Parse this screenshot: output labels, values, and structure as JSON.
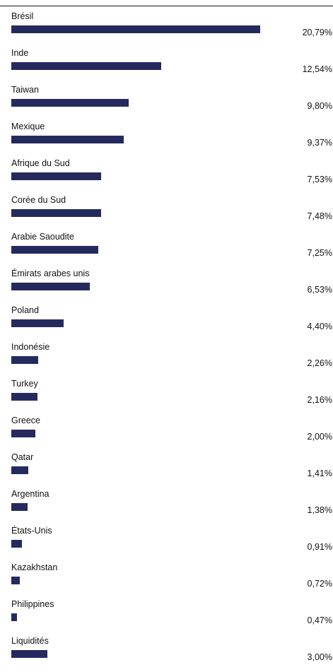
{
  "colors": {
    "bar": "#252a5e",
    "text": "#111111",
    "rule": "#111111"
  },
  "chart_data": {
    "type": "bar",
    "orientation": "horizontal",
    "unit": "%",
    "categories": [
      "Brésil",
      "Inde",
      "Taiwan",
      "Mexique",
      "Afrique du Sud",
      "Corée du Sud",
      "Arabie Saoudite",
      "Émirats arabes unis",
      "Poland",
      "Indonésie",
      "Turkey",
      "Greece",
      "Qatar",
      "Argentina",
      "États-Unis",
      "Kazakhstan",
      "Philippines",
      "Liquidités"
    ],
    "values": [
      20.79,
      12.54,
      9.8,
      9.37,
      7.53,
      7.48,
      7.25,
      6.53,
      4.4,
      2.26,
      2.16,
      2.0,
      1.41,
      1.38,
      0.91,
      0.72,
      0.47,
      3.0
    ],
    "value_labels": [
      "20,79%",
      "12,54%",
      "9,80%",
      "9,37%",
      "7,53%",
      "7,48%",
      "7,25%",
      "6,53%",
      "4,40%",
      "2,26%",
      "2,16%",
      "2,00%",
      "1,41%",
      "1,38%",
      "0,91%",
      "0,72%",
      "0,47%",
      "3,00%"
    ],
    "xlim": [
      0,
      20.79
    ],
    "grid": false,
    "legend": "none"
  }
}
